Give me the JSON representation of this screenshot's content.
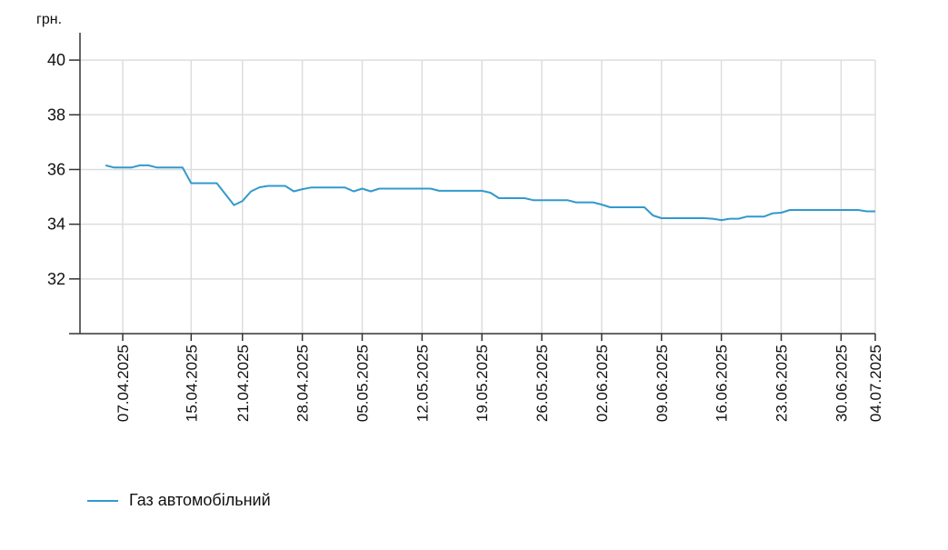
{
  "chart_data": {
    "type": "line",
    "y_unit_label": "грн.",
    "ylim": [
      30,
      41
    ],
    "yticks": [
      32,
      34,
      36,
      38,
      40
    ],
    "grid": true,
    "legend_position": "bottom-left",
    "x_ticks": [
      "07.04.2025",
      "15.04.2025",
      "21.04.2025",
      "28.04.2025",
      "05.05.2025",
      "12.05.2025",
      "19.05.2025",
      "26.05.2025",
      "02.06.2025",
      "09.06.2025",
      "16.06.2025",
      "23.06.2025",
      "30.06.2025",
      "04.07.2025"
    ],
    "x_range": [
      "2025-04-02",
      "2025-07-04"
    ],
    "series": [
      {
        "name": "Газ автомобільний",
        "color": "#3399cc",
        "points": [
          [
            "2025-04-05",
            36.15
          ],
          [
            "2025-04-06",
            36.07
          ],
          [
            "2025-04-07",
            36.07
          ],
          [
            "2025-04-08",
            36.07
          ],
          [
            "2025-04-09",
            36.15
          ],
          [
            "2025-04-10",
            36.15
          ],
          [
            "2025-04-11",
            36.07
          ],
          [
            "2025-04-12",
            36.07
          ],
          [
            "2025-04-13",
            36.07
          ],
          [
            "2025-04-14",
            36.07
          ],
          [
            "2025-04-15",
            35.5
          ],
          [
            "2025-04-16",
            35.5
          ],
          [
            "2025-04-17",
            35.5
          ],
          [
            "2025-04-18",
            35.5
          ],
          [
            "2025-04-19",
            35.1
          ],
          [
            "2025-04-20",
            34.7
          ],
          [
            "2025-04-21",
            34.85
          ],
          [
            "2025-04-22",
            35.2
          ],
          [
            "2025-04-23",
            35.35
          ],
          [
            "2025-04-24",
            35.4
          ],
          [
            "2025-04-25",
            35.4
          ],
          [
            "2025-04-26",
            35.4
          ],
          [
            "2025-04-27",
            35.2
          ],
          [
            "2025-04-28",
            35.28
          ],
          [
            "2025-04-29",
            35.34
          ],
          [
            "2025-04-30",
            35.34
          ],
          [
            "2025-05-01",
            35.34
          ],
          [
            "2025-05-02",
            35.34
          ],
          [
            "2025-05-03",
            35.34
          ],
          [
            "2025-05-04",
            35.2
          ],
          [
            "2025-05-05",
            35.3
          ],
          [
            "2025-05-06",
            35.2
          ],
          [
            "2025-05-07",
            35.3
          ],
          [
            "2025-05-08",
            35.3
          ],
          [
            "2025-05-09",
            35.3
          ],
          [
            "2025-05-10",
            35.3
          ],
          [
            "2025-05-11",
            35.3
          ],
          [
            "2025-05-12",
            35.3
          ],
          [
            "2025-05-13",
            35.3
          ],
          [
            "2025-05-14",
            35.22
          ],
          [
            "2025-05-15",
            35.22
          ],
          [
            "2025-05-16",
            35.22
          ],
          [
            "2025-05-17",
            35.22
          ],
          [
            "2025-05-18",
            35.22
          ],
          [
            "2025-05-19",
            35.22
          ],
          [
            "2025-05-20",
            35.15
          ],
          [
            "2025-05-21",
            34.95
          ],
          [
            "2025-05-22",
            34.95
          ],
          [
            "2025-05-23",
            34.95
          ],
          [
            "2025-05-24",
            34.95
          ],
          [
            "2025-05-25",
            34.88
          ],
          [
            "2025-05-26",
            34.88
          ],
          [
            "2025-05-27",
            34.88
          ],
          [
            "2025-05-28",
            34.88
          ],
          [
            "2025-05-29",
            34.88
          ],
          [
            "2025-05-30",
            34.8
          ],
          [
            "2025-05-31",
            34.8
          ],
          [
            "2025-06-01",
            34.8
          ],
          [
            "2025-06-02",
            34.72
          ],
          [
            "2025-06-03",
            34.62
          ],
          [
            "2025-06-04",
            34.62
          ],
          [
            "2025-06-05",
            34.62
          ],
          [
            "2025-06-06",
            34.62
          ],
          [
            "2025-06-07",
            34.62
          ],
          [
            "2025-06-08",
            34.32
          ],
          [
            "2025-06-09",
            34.22
          ],
          [
            "2025-06-10",
            34.22
          ],
          [
            "2025-06-11",
            34.22
          ],
          [
            "2025-06-12",
            34.22
          ],
          [
            "2025-06-13",
            34.22
          ],
          [
            "2025-06-14",
            34.22
          ],
          [
            "2025-06-15",
            34.2
          ],
          [
            "2025-06-16",
            34.15
          ],
          [
            "2025-06-17",
            34.2
          ],
          [
            "2025-06-18",
            34.2
          ],
          [
            "2025-06-19",
            34.28
          ],
          [
            "2025-06-20",
            34.28
          ],
          [
            "2025-06-21",
            34.28
          ],
          [
            "2025-06-22",
            34.4
          ],
          [
            "2025-06-23",
            34.42
          ],
          [
            "2025-06-24",
            34.52
          ],
          [
            "2025-06-25",
            34.52
          ],
          [
            "2025-06-26",
            34.52
          ],
          [
            "2025-06-27",
            34.52
          ],
          [
            "2025-06-28",
            34.52
          ],
          [
            "2025-06-29",
            34.52
          ],
          [
            "2025-06-30",
            34.52
          ],
          [
            "2025-07-01",
            34.52
          ],
          [
            "2025-07-02",
            34.52
          ],
          [
            "2025-07-03",
            34.47
          ],
          [
            "2025-07-04",
            34.47
          ]
        ]
      }
    ]
  }
}
